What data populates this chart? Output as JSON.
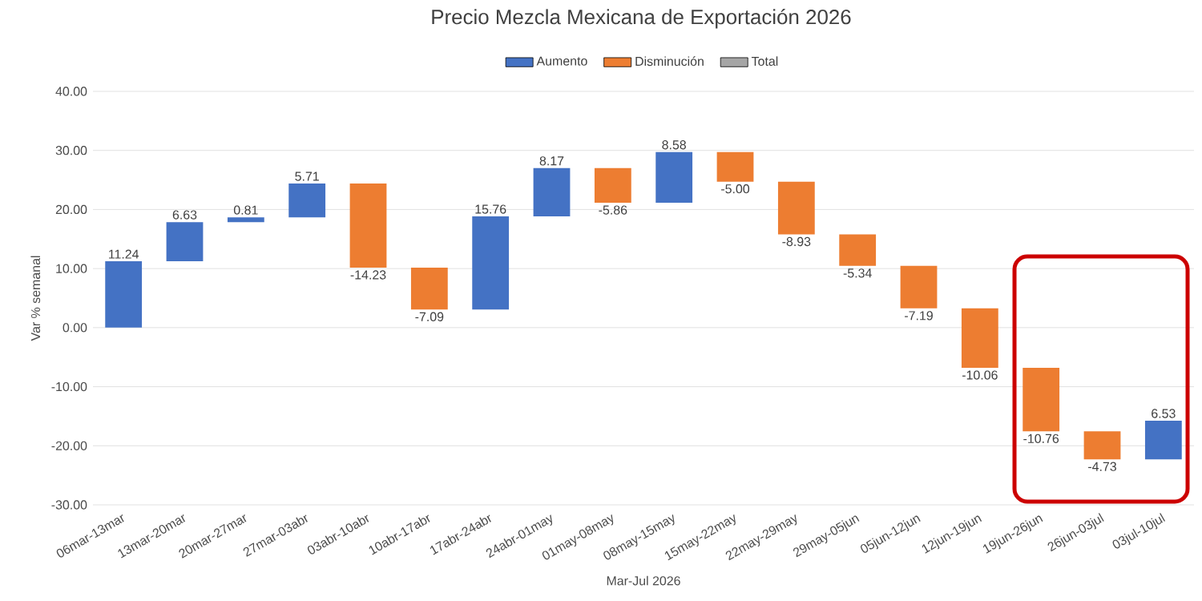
{
  "chart_data": {
    "type": "bar",
    "title": "Precio Mezcla Mexicana de Exportación 2026",
    "xlabel": "Mar-Jul 2026",
    "ylabel": "Var % semanal",
    "categories": [
      "06mar-13mar",
      "13mar-20mar",
      "20mar-27mar",
      "27mar-03abr",
      "03abr-10abr",
      "10abr-17abr",
      "17abr-24abr",
      "24abr-01may",
      "01may-08may",
      "08may-15may",
      "15may-22may",
      "22may-29may",
      "29may-05jun",
      "05jun-12jun",
      "12jun-19jun",
      "19jun-26jun",
      "26jun-03jul",
      "03jul-10jul"
    ],
    "series": [
      {
        "name": "Aumento",
        "color": "#4472c4",
        "values": [
          11.24,
          6.63,
          0.81,
          5.71,
          null,
          null,
          15.76,
          8.17,
          null,
          8.58,
          null,
          null,
          null,
          null,
          null,
          null,
          null,
          6.53
        ],
        "base": [
          0,
          11.24,
          17.87,
          18.68,
          null,
          null,
          3.07,
          18.83,
          null,
          21.14,
          null,
          null,
          null,
          null,
          null,
          null,
          null,
          -22.29
        ],
        "value_labels": [
          "11.24",
          "6.63",
          "0.81",
          "5.71",
          null,
          null,
          "15.76",
          "8.17",
          null,
          "8.58",
          null,
          null,
          null,
          null,
          null,
          null,
          null,
          "6.53"
        ]
      },
      {
        "name": "Disminución",
        "color": "#ed7d31",
        "values": [
          null,
          null,
          null,
          null,
          -14.23,
          -7.09,
          null,
          null,
          -5.86,
          null,
          -5.0,
          -8.93,
          -5.34,
          -7.19,
          -10.06,
          -10.76,
          -4.73,
          null
        ],
        "base": [
          null,
          null,
          null,
          null,
          24.39,
          10.16,
          null,
          null,
          27.0,
          null,
          29.72,
          24.72,
          15.79,
          10.45,
          3.26,
          -6.8,
          -17.56,
          null
        ],
        "value_labels": [
          null,
          null,
          null,
          null,
          "-14.23",
          "-7.09",
          null,
          null,
          "-5.86",
          null,
          "-5.00",
          "-8.93",
          "-5.34",
          "-7.19",
          "-10.06",
          "-10.76",
          "-4.73",
          null
        ]
      },
      {
        "name": "Total",
        "color": "#a5a5a5",
        "values": [
          null,
          null,
          null,
          null,
          null,
          null,
          null,
          null,
          null,
          null,
          null,
          null,
          null,
          null,
          null,
          null,
          null,
          null
        ]
      }
    ],
    "ylim": [
      -30,
      40
    ],
    "yticks": [
      {
        "value": -30,
        "label": "-30.00"
      },
      {
        "value": -20,
        "label": "-20.00"
      },
      {
        "value": -10,
        "label": "-10.00"
      },
      {
        "value": 0,
        "label": "0.00"
      },
      {
        "value": 10,
        "label": "10.00"
      },
      {
        "value": 20,
        "label": "20.00"
      },
      {
        "value": 30,
        "label": "30.00"
      },
      {
        "value": 40,
        "label": "40.00"
      }
    ],
    "grid": "y",
    "legend": "top"
  }
}
